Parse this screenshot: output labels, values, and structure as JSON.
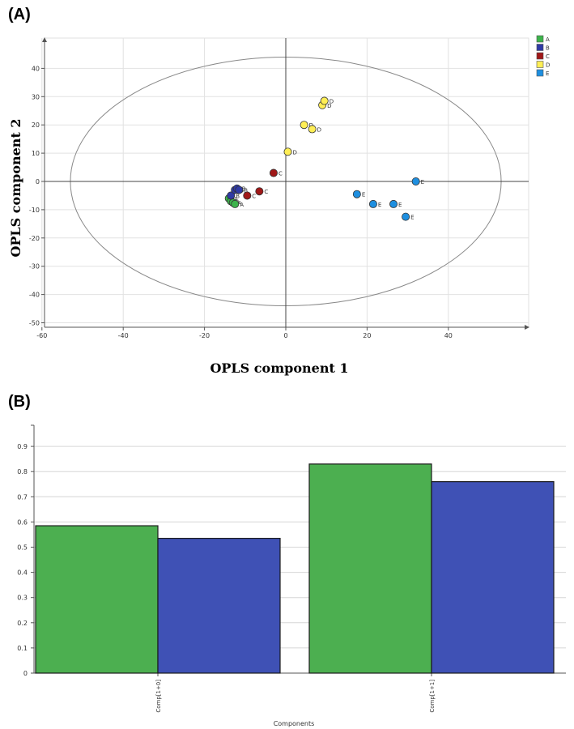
{
  "panel_a_label": "(A)",
  "panel_b_label": "(B)",
  "chart_data": [
    {
      "type": "scatter",
      "xlabel": "OPLS component 1",
      "ylabel": "OPLS component 2",
      "xlim": [
        -60,
        60
      ],
      "ylim": [
        -50,
        50
      ],
      "x_ticks": [
        -60,
        -40,
        -20,
        0,
        20,
        40
      ],
      "y_ticks": [
        40,
        30,
        20,
        10,
        0,
        -10,
        -20,
        -30,
        -40,
        -50
      ],
      "grid": true,
      "legend_position": "top-right",
      "confidence_ellipse": {
        "cx": 0,
        "cy": 0,
        "rx": 53,
        "ry": 44
      },
      "series": [
        {
          "name": "A",
          "color": "#3cb44b",
          "points": [
            [
              -14,
              -6
            ],
            [
              -13.5,
              -7
            ],
            [
              -13,
              -7.5
            ],
            [
              -12.5,
              -8
            ]
          ],
          "labels": [
            "A",
            "A",
            "A",
            "A"
          ]
        },
        {
          "name": "B",
          "color": "#2f3aa5",
          "points": [
            [
              -13.5,
              -5
            ],
            [
              -12.5,
              -3
            ],
            [
              -12,
              -2.5
            ],
            [
              -11.5,
              -3
            ]
          ],
          "labels": [
            "B",
            "B",
            "B",
            "B"
          ]
        },
        {
          "name": "C",
          "color": "#a01818",
          "points": [
            [
              -9.5,
              -5
            ],
            [
              -6.5,
              -3.5
            ],
            [
              -3,
              3
            ]
          ],
          "labels": [
            "C",
            "C",
            "C"
          ]
        },
        {
          "name": "D",
          "color": "#ffee55",
          "points": [
            [
              0.5,
              10.5
            ],
            [
              4.5,
              20
            ],
            [
              6.5,
              18.5
            ],
            [
              9,
              27
            ],
            [
              9.5,
              28.5
            ]
          ],
          "labels": [
            "D",
            "D",
            "D",
            "D",
            "D"
          ]
        },
        {
          "name": "E",
          "color": "#1e8fe0",
          "points": [
            [
              17.5,
              -4.5
            ],
            [
              21.5,
              -8
            ],
            [
              26.5,
              -8
            ],
            [
              29.5,
              -12.5
            ],
            [
              32,
              0
            ]
          ],
          "labels": [
            "E",
            "E",
            "E",
            "E",
            "E"
          ]
        }
      ]
    },
    {
      "type": "bar",
      "xlabel": "Components",
      "categories": [
        "Comp[1+0]",
        "Comp[1+1]"
      ],
      "ylim": [
        0,
        0.9
      ],
      "y_ticks": [
        0,
        0.1,
        0.2,
        0.3,
        0.4,
        0.5,
        0.6,
        0.7,
        0.8,
        0.9
      ],
      "grid": true,
      "series": [
        {
          "color": "#4caf50",
          "values": [
            0.585,
            0.83
          ]
        },
        {
          "color": "#3f51b5",
          "values": [
            0.535,
            0.76
          ]
        }
      ]
    }
  ]
}
